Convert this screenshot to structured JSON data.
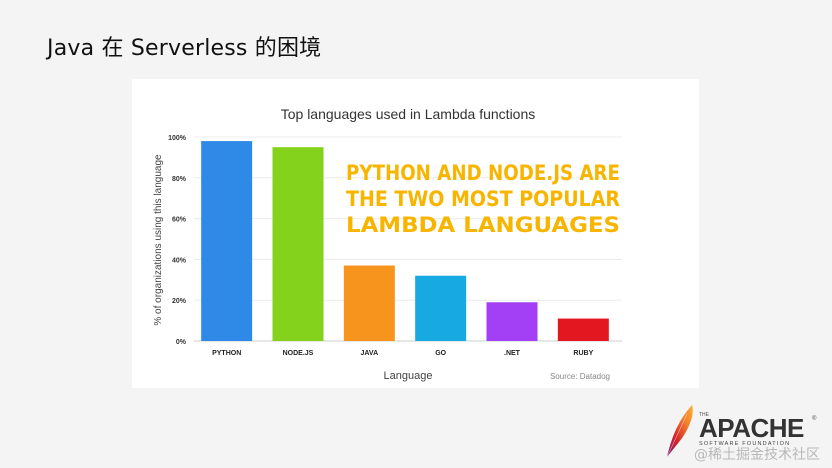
{
  "slide": {
    "title": "Java 在 Serverless 的困境"
  },
  "chart_data": {
    "type": "bar",
    "title": "Top languages used in Lambda functions",
    "xlabel": "Language",
    "ylabel": "% of organizations using this language",
    "categories": [
      "PYTHON",
      "NODE.JS",
      "JAVA",
      "GO",
      ".NET",
      "RUBY"
    ],
    "values": [
      98,
      95,
      37,
      32,
      19,
      11
    ],
    "colors": [
      "#2e8ae6",
      "#84d21c",
      "#f7941d",
      "#17a9e1",
      "#a33ff5",
      "#e3171f"
    ],
    "ylim": [
      0,
      100
    ],
    "yticks": [
      0,
      20,
      40,
      60,
      80,
      100
    ],
    "ytick_labels": [
      "0%",
      "20%",
      "40%",
      "60%",
      "80%",
      "100%"
    ],
    "grid": true,
    "annotation": {
      "lines": [
        "PYTHON AND NODE.JS ARE",
        "THE TWO MOST POPULAR",
        "LAMBDA LANGUAGES"
      ],
      "color": "#f7b500"
    },
    "source": "Source: Datadog"
  },
  "logo": {
    "the": "THE",
    "name": "APACHE",
    "tm": "®",
    "sub": "SOFTWARE FOUNDATION"
  },
  "watermark": "@稀土掘金技术社区"
}
